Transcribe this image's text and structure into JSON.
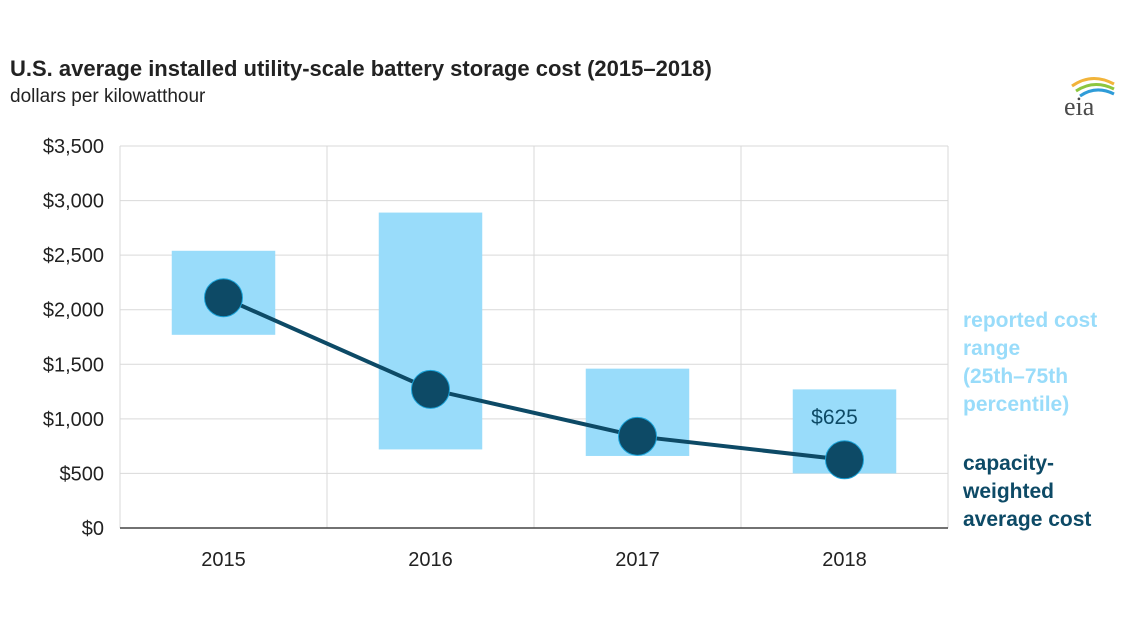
{
  "header": {
    "title": "U.S. average installed utility-scale battery storage cost (2015–2018)",
    "subtitle": "dollars per kilowatthour",
    "logo_text": "eia"
  },
  "legend": {
    "range_line1": "reported cost",
    "range_line2": "range",
    "range_line3": "(25th–75th",
    "range_line4": "percentile)",
    "avg_line1": "capacity-",
    "avg_line2": "weighted",
    "avg_line3": "average cost"
  },
  "colors": {
    "range_fill": "#99dcfa",
    "average_line": "#0d4a66",
    "grid": "#d9d9d9",
    "axis": "#444444"
  },
  "chart_data": {
    "type": "line",
    "categories": [
      "2015",
      "2016",
      "2017",
      "2018"
    ],
    "ylim": [
      0,
      3500
    ],
    "y_ticks": [
      0,
      500,
      1000,
      1500,
      2000,
      2500,
      3000,
      3500
    ],
    "y_tick_labels": [
      "$0",
      "$500",
      "$1,000",
      "$1,500",
      "$2,000",
      "$2,500",
      "$3,000",
      "$3,500"
    ],
    "grid": true,
    "series": [
      {
        "name": "reported cost range (25th–75th percentile)",
        "kind": "range",
        "low": [
          1770,
          720,
          660,
          500
        ],
        "high": [
          2540,
          2890,
          1460,
          1270
        ]
      },
      {
        "name": "capacity-weighted average cost",
        "kind": "line",
        "values": [
          2110,
          1270,
          840,
          625
        ]
      }
    ],
    "annotations": [
      {
        "category": "2018",
        "text": "$625"
      }
    ]
  }
}
